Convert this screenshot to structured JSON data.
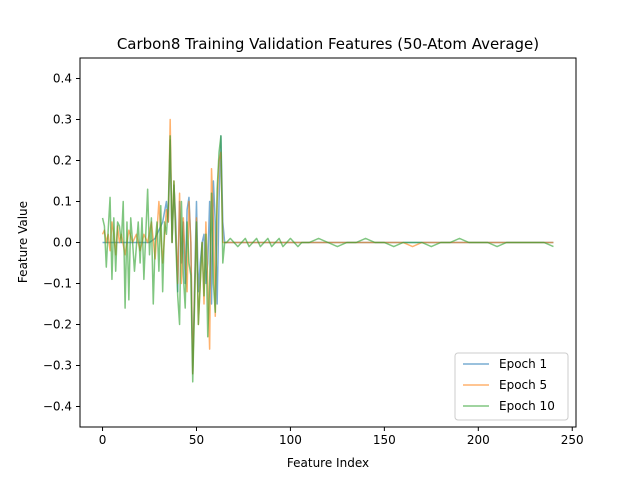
{
  "chart_data": {
    "type": "line",
    "title": "Carbon8 Training Validation Features (50-Atom Average)",
    "xlabel": "Feature Index",
    "ylabel": "Feature Value",
    "xlim": [
      -12,
      252
    ],
    "ylim": [
      -0.45,
      0.45
    ],
    "xticks": [
      0,
      50,
      100,
      150,
      200,
      250
    ],
    "yticks": [
      -0.4,
      -0.3,
      -0.2,
      -0.1,
      0.0,
      0.1,
      0.2,
      0.3,
      0.4
    ],
    "xtick_labels": [
      "0",
      "50",
      "100",
      "150",
      "200",
      "250"
    ],
    "ytick_labels": [
      "−0.4",
      "−0.3",
      "−0.2",
      "−0.1",
      "0.0",
      "0.1",
      "0.2",
      "0.3",
      "0.4"
    ],
    "grid": false,
    "legend_position": "bottom-right",
    "series": [
      {
        "name": "Epoch 1",
        "color": "#1f77b4",
        "points": [
          [
            0,
            0.0
          ],
          [
            5,
            0.0
          ],
          [
            10,
            0.0
          ],
          [
            15,
            0.0
          ],
          [
            20,
            0.0
          ],
          [
            25,
            0.0
          ],
          [
            28,
            0.01
          ],
          [
            30,
            0.03
          ],
          [
            32,
            0.05
          ],
          [
            34,
            0.1
          ],
          [
            35,
            0.05
          ],
          [
            36,
            0.25
          ],
          [
            37,
            0.0
          ],
          [
            38,
            0.14
          ],
          [
            39,
            0.05
          ],
          [
            40,
            -0.12
          ],
          [
            41,
            0.1
          ],
          [
            42,
            -0.05
          ],
          [
            43,
            0.05
          ],
          [
            44,
            -0.1
          ],
          [
            45,
            0.08
          ],
          [
            46,
            0.11
          ],
          [
            47,
            0.0
          ],
          [
            48,
            -0.32
          ],
          [
            49,
            -0.1
          ],
          [
            50,
            0.1
          ],
          [
            51,
            -0.12
          ],
          [
            52,
            -0.05
          ],
          [
            53,
            0.0
          ],
          [
            54,
            0.02
          ],
          [
            55,
            -0.1
          ],
          [
            56,
            -0.05
          ],
          [
            57,
            0.1
          ],
          [
            58,
            -0.15
          ],
          [
            59,
            0.15
          ],
          [
            60,
            0.05
          ],
          [
            61,
            -0.15
          ],
          [
            62,
            0.1
          ],
          [
            63,
            0.26
          ],
          [
            64,
            0.05
          ],
          [
            65,
            0.0
          ],
          [
            70,
            0.0
          ],
          [
            80,
            0.0
          ],
          [
            90,
            0.0
          ],
          [
            100,
            0.0
          ],
          [
            120,
            0.0
          ],
          [
            140,
            0.0
          ],
          [
            160,
            0.0
          ],
          [
            180,
            0.0
          ],
          [
            200,
            0.0
          ],
          [
            220,
            0.0
          ],
          [
            240,
            0.0
          ]
        ]
      },
      {
        "name": "Epoch 5",
        "color": "#ff7f0e",
        "points": [
          [
            0,
            0.02
          ],
          [
            1,
            0.03
          ],
          [
            2,
            0.0
          ],
          [
            3,
            0.02
          ],
          [
            4,
            -0.02
          ],
          [
            5,
            0.05
          ],
          [
            6,
            0.02
          ],
          [
            7,
            -0.03
          ],
          [
            8,
            0.04
          ],
          [
            9,
            0.0
          ],
          [
            10,
            0.02
          ],
          [
            12,
            -0.03
          ],
          [
            14,
            0.03
          ],
          [
            16,
            0.0
          ],
          [
            18,
            0.02
          ],
          [
            20,
            -0.02
          ],
          [
            22,
            0.02
          ],
          [
            24,
            0.0
          ],
          [
            26,
            0.05
          ],
          [
            28,
            -0.04
          ],
          [
            30,
            0.1
          ],
          [
            32,
            -0.05
          ],
          [
            34,
            0.08
          ],
          [
            35,
            0.05
          ],
          [
            36,
            0.3
          ],
          [
            37,
            0.0
          ],
          [
            38,
            0.15
          ],
          [
            39,
            0.02
          ],
          [
            40,
            -0.1
          ],
          [
            41,
            0.12
          ],
          [
            42,
            -0.1
          ],
          [
            43,
            0.06
          ],
          [
            44,
            -0.05
          ],
          [
            45,
            -0.12
          ],
          [
            46,
            0.1
          ],
          [
            47,
            0.0
          ],
          [
            48,
            -0.32
          ],
          [
            49,
            -0.12
          ],
          [
            50,
            0.06
          ],
          [
            51,
            -0.2
          ],
          [
            52,
            -0.1
          ],
          [
            53,
            0.0
          ],
          [
            54,
            -0.15
          ],
          [
            55,
            0.05
          ],
          [
            56,
            -0.1
          ],
          [
            57,
            -0.26
          ],
          [
            58,
            0.18
          ],
          [
            59,
            0.05
          ],
          [
            60,
            -0.18
          ],
          [
            61,
            0.1
          ],
          [
            62,
            0.2
          ],
          [
            63,
            0.22
          ],
          [
            64,
            0.0
          ],
          [
            66,
            0.0
          ],
          [
            70,
            0.0
          ],
          [
            80,
            0.0
          ],
          [
            90,
            0.0
          ],
          [
            100,
            0.0
          ],
          [
            120,
            0.0
          ],
          [
            140,
            0.0
          ],
          [
            160,
            0.0
          ],
          [
            165,
            -0.01
          ],
          [
            170,
            0.0
          ],
          [
            180,
            0.0
          ],
          [
            200,
            0.0
          ],
          [
            220,
            0.0
          ],
          [
            240,
            0.0
          ]
        ]
      },
      {
        "name": "Epoch 10",
        "color": "#2ca02c",
        "points": [
          [
            0,
            0.06
          ],
          [
            1,
            0.04
          ],
          [
            2,
            -0.06
          ],
          [
            3,
            0.03
          ],
          [
            4,
            0.11
          ],
          [
            5,
            -0.09
          ],
          [
            6,
            0.06
          ],
          [
            7,
            -0.07
          ],
          [
            8,
            0.05
          ],
          [
            9,
            0.04
          ],
          [
            10,
            0.0
          ],
          [
            11,
            0.1
          ],
          [
            12,
            -0.16
          ],
          [
            13,
            0.05
          ],
          [
            14,
            -0.14
          ],
          [
            15,
            0.06
          ],
          [
            16,
            0.0
          ],
          [
            17,
            -0.07
          ],
          [
            18,
            -0.01
          ],
          [
            19,
            0.05
          ],
          [
            20,
            -0.05
          ],
          [
            21,
            0.06
          ],
          [
            22,
            -0.09
          ],
          [
            23,
            0.02
          ],
          [
            24,
            0.13
          ],
          [
            25,
            -0.03
          ],
          [
            26,
            0.06
          ],
          [
            27,
            -0.15
          ],
          [
            28,
            0.0
          ],
          [
            29,
            0.05
          ],
          [
            30,
            -0.07
          ],
          [
            31,
            0.09
          ],
          [
            32,
            -0.12
          ],
          [
            33,
            0.05
          ],
          [
            34,
            0.02
          ],
          [
            35,
            0.09
          ],
          [
            36,
            0.26
          ],
          [
            37,
            0.0
          ],
          [
            38,
            0.15
          ],
          [
            39,
            0.0
          ],
          [
            40,
            -0.13
          ],
          [
            41,
            -0.2
          ],
          [
            42,
            0.1
          ],
          [
            43,
            -0.08
          ],
          [
            44,
            -0.16
          ],
          [
            45,
            0.05
          ],
          [
            46,
            -0.05
          ],
          [
            47,
            -0.08
          ],
          [
            48,
            -0.34
          ],
          [
            49,
            -0.15
          ],
          [
            50,
            0.05
          ],
          [
            51,
            -0.2
          ],
          [
            52,
            -0.1
          ],
          [
            53,
            0.0
          ],
          [
            54,
            -0.13
          ],
          [
            55,
            0.02
          ],
          [
            56,
            -0.23
          ],
          [
            57,
            -0.1
          ],
          [
            58,
            0.12
          ],
          [
            59,
            -0.1
          ],
          [
            60,
            -0.17
          ],
          [
            61,
            0.13
          ],
          [
            62,
            0.22
          ],
          [
            63,
            0.26
          ],
          [
            64,
            -0.05
          ],
          [
            65,
            0.0
          ],
          [
            66,
            0.0
          ],
          [
            68,
            0.01
          ],
          [
            70,
            0.0
          ],
          [
            72,
            -0.01
          ],
          [
            74,
            0.0
          ],
          [
            76,
            0.01
          ],
          [
            78,
            -0.01
          ],
          [
            80,
            0.0
          ],
          [
            82,
            0.01
          ],
          [
            84,
            -0.01
          ],
          [
            86,
            0.0
          ],
          [
            88,
            0.01
          ],
          [
            90,
            -0.01
          ],
          [
            92,
            0.0
          ],
          [
            94,
            0.01
          ],
          [
            96,
            -0.01
          ],
          [
            98,
            0.0
          ],
          [
            100,
            0.01
          ],
          [
            102,
            0.0
          ],
          [
            104,
            -0.01
          ],
          [
            106,
            0.0
          ],
          [
            110,
            0.0
          ],
          [
            115,
            0.01
          ],
          [
            120,
            0.0
          ],
          [
            125,
            -0.01
          ],
          [
            130,
            0.0
          ],
          [
            135,
            0.0
          ],
          [
            140,
            0.01
          ],
          [
            145,
            0.0
          ],
          [
            150,
            0.0
          ],
          [
            155,
            -0.01
          ],
          [
            160,
            0.0
          ],
          [
            165,
            0.0
          ],
          [
            170,
            0.0
          ],
          [
            175,
            -0.01
          ],
          [
            180,
            0.0
          ],
          [
            185,
            0.0
          ],
          [
            190,
            0.01
          ],
          [
            195,
            0.0
          ],
          [
            200,
            0.0
          ],
          [
            205,
            0.0
          ],
          [
            210,
            -0.01
          ],
          [
            215,
            0.0
          ],
          [
            220,
            0.0
          ],
          [
            225,
            0.0
          ],
          [
            230,
            0.0
          ],
          [
            235,
            0.0
          ],
          [
            240,
            -0.01
          ]
        ]
      }
    ]
  }
}
